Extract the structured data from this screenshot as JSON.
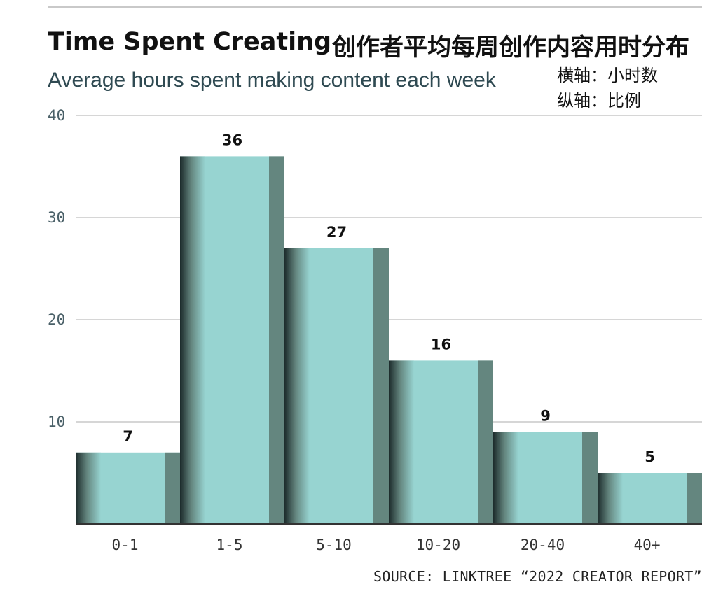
{
  "header": {
    "title": "Time Spent Creating",
    "title_cn": "创作者平均每周创作内容用时分布",
    "subtitle": "Average hours spent making content each week",
    "note_x": "横轴：小时数",
    "note_y": "纵轴：比例"
  },
  "footer": {
    "source": "SOURCE: LINKTREE “2022 CREATOR REPORT”"
  },
  "colors": {
    "bar_face": "#97d4d1",
    "bar_side": "#64867f",
    "grid": "#d6d6d6",
    "baseline": "#333333"
  },
  "chart_data": {
    "type": "bar",
    "title": "Time Spent Creating",
    "subtitle": "Average hours spent making content each week",
    "categories": [
      "0-1",
      "1-5",
      "5-10",
      "10-20",
      "20-40",
      "40+"
    ],
    "values": [
      7,
      36,
      27,
      16,
      9,
      5
    ],
    "xlabel": "",
    "ylabel": "",
    "ylim": [
      0,
      40
    ],
    "yticks": [
      "10",
      "20",
      "30",
      "40"
    ],
    "grid": true,
    "legend": "none"
  }
}
